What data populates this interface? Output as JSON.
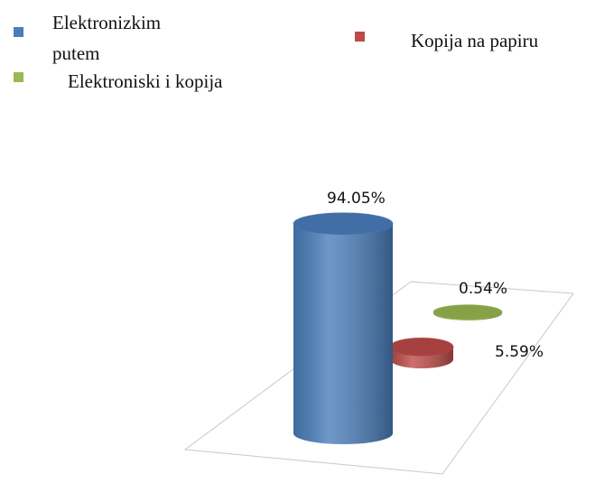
{
  "chart_data": {
    "type": "bar3d",
    "series": [
      {
        "name": "Elektronizkim putem",
        "color": "#4a7ebb",
        "values": [
          94.05
        ],
        "value_labels": [
          "94.05%"
        ]
      },
      {
        "name": "Kopija na papiru",
        "color": "#be4b48",
        "values": [
          5.59
        ],
        "value_labels": [
          "5.59%"
        ]
      },
      {
        "name": "Elektroniski i kopija",
        "color": "#98b954",
        "values": [
          0.54
        ],
        "value_labels": [
          "0.54%"
        ]
      }
    ]
  }
}
